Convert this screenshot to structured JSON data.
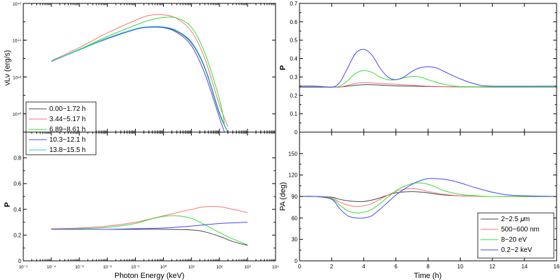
{
  "colors": {
    "black": "#444444",
    "red": "#ff6f6f",
    "green": "#33dd33",
    "blue": "#4444ff",
    "cyan": "#22cccc"
  },
  "chart_data": [
    {
      "id": "sed",
      "type": "line",
      "xscale": "log",
      "yscale": "log",
      "xlim": [
        1e-05,
        10000
      ],
      "ylim": [
        1e+39,
        1e+46
      ],
      "xlabel": "",
      "ylabel": "νLν (erg/s)",
      "xticks": [
        {
          "v": 1e-05,
          "label": "10⁻⁵"
        },
        {
          "v": 0.0001,
          "label": "10⁻⁴"
        },
        {
          "v": 0.001,
          "label": "10⁻³"
        },
        {
          "v": 0.01,
          "label": "10⁻²"
        },
        {
          "v": 0.1,
          "label": "10⁻¹"
        },
        {
          "v": 1,
          "label": "10⁰"
        },
        {
          "v": 10,
          "label": "10¹"
        },
        {
          "v": 100,
          "label": "10²"
        },
        {
          "v": 1000,
          "label": "10³"
        },
        {
          "v": 10000,
          "label": "10⁴"
        }
      ],
      "yticks": [
        {
          "v": 1e+40,
          "label": "10⁴⁰"
        },
        {
          "v": 1e+42,
          "label": "10⁴²"
        },
        {
          "v": 1e+44,
          "label": "10⁴⁴"
        },
        {
          "v": 1e+46,
          "label": "10⁴⁶"
        }
      ],
      "legend": {
        "placement": "lower-left"
      },
      "series": [
        {
          "name": "0.00~1.72 h",
          "color": "#444444",
          "x": [
            0.0001,
            0.001,
            0.01,
            0.1,
            0.3,
            1,
            3,
            10,
            30,
            100,
            200
          ],
          "y": [
            7e+42,
            3e+43,
            1.3e+44,
            4e+44,
            5.2e+44,
            5e+44,
            3e+44,
            7e+43,
            3e+42,
            1e+40,
            1e+39
          ]
        },
        {
          "name": "3.44~5.17 h",
          "color": "#ff6f6f",
          "x": [
            0.0001,
            0.001,
            0.01,
            0.1,
            0.3,
            1,
            3,
            10,
            30,
            100,
            200
          ],
          "y": [
            7.5e+42,
            4e+43,
            2.5e+44,
            1.2e+45,
            2.2e+45,
            2.4e+45,
            1.5e+45,
            3e+44,
            1e+43,
            3e+40,
            2e+39
          ]
        },
        {
          "name": "6.89~8.61 h",
          "color": "#33dd33",
          "x": [
            0.0001,
            0.001,
            0.01,
            0.1,
            0.3,
            1,
            3,
            10,
            30,
            100,
            150
          ],
          "y": [
            7e+42,
            3.2e+43,
            1.6e+44,
            6.5e+44,
            1.2e+45,
            1.7e+45,
            1.6e+45,
            5e+44,
            2e+43,
            6e+40,
            3e+39
          ]
        },
        {
          "name": "10.3~12.1 h",
          "color": "#4444ff",
          "x": [
            0.0001,
            0.001,
            0.01,
            0.1,
            0.3,
            1,
            3,
            10,
            30,
            100,
            150
          ],
          "y": [
            7e+42,
            3e+43,
            1.2e+44,
            3.8e+44,
            5e+44,
            4.8e+44,
            2.6e+44,
            5e+43,
            1.5e+42,
            6e+39,
            1e+39
          ]
        },
        {
          "name": "13.8~15.5 h",
          "color": "#22cccc",
          "x": [
            0.0001,
            0.001,
            0.01,
            0.1,
            0.3,
            1,
            3,
            10,
            30,
            100,
            200
          ],
          "y": [
            7e+42,
            3e+43,
            1.3e+44,
            4.1e+44,
            5.4e+44,
            5.3e+44,
            3.3e+44,
            8e+43,
            3.5e+42,
            1.2e+40,
            1e+39
          ]
        }
      ]
    },
    {
      "id": "pol_energy",
      "type": "line",
      "xscale": "log",
      "xlim": [
        1e-05,
        10000
      ],
      "ylim": [
        0,
        1.0
      ],
      "xlabel": "Photon Energy (keV)",
      "ylabel": "P",
      "xticks": [
        {
          "v": 1e-05,
          "label": "10⁻⁵"
        },
        {
          "v": 0.0001,
          "label": "10⁻⁴"
        },
        {
          "v": 0.001,
          "label": "10⁻³"
        },
        {
          "v": 0.01,
          "label": "10⁻²"
        },
        {
          "v": 0.1,
          "label": "10⁻¹"
        },
        {
          "v": 1,
          "label": "10⁰"
        },
        {
          "v": 10,
          "label": "10¹"
        },
        {
          "v": 100,
          "label": "10²"
        },
        {
          "v": 1000,
          "label": "10³"
        },
        {
          "v": 10000,
          "label": "10⁴"
        }
      ],
      "yticks": [
        {
          "v": 0,
          "label": "0"
        },
        {
          "v": 0.2,
          "label": "0.2"
        },
        {
          "v": 0.4,
          "label": "0.4"
        },
        {
          "v": 0.6,
          "label": "0.6"
        },
        {
          "v": 0.8,
          "label": "0.8"
        }
      ],
      "series": [
        {
          "color": "#444444",
          "x": [
            0.0001,
            0.001,
            0.01,
            0.1,
            1,
            10,
            30,
            100,
            300,
            1000
          ],
          "y": [
            0.245,
            0.245,
            0.245,
            0.245,
            0.245,
            0.24,
            0.225,
            0.19,
            0.15,
            0.12
          ]
        },
        {
          "color": "#ff6f6f",
          "x": [
            0.0001,
            0.001,
            0.01,
            0.1,
            1,
            10,
            30,
            100,
            300,
            1000
          ],
          "y": [
            0.25,
            0.255,
            0.27,
            0.3,
            0.35,
            0.4,
            0.42,
            0.42,
            0.4,
            0.375
          ]
        },
        {
          "color": "#33dd33",
          "x": [
            0.0001,
            0.001,
            0.01,
            0.1,
            0.3,
            1,
            3,
            10,
            30,
            100,
            300,
            1000
          ],
          "y": [
            0.245,
            0.25,
            0.26,
            0.29,
            0.32,
            0.345,
            0.35,
            0.33,
            0.28,
            0.22,
            0.17,
            0.125
          ]
        },
        {
          "color": "#4444ff",
          "x": [
            0.0001,
            0.001,
            0.01,
            0.1,
            1,
            10,
            30,
            100,
            300,
            1000
          ],
          "y": [
            0.245,
            0.245,
            0.245,
            0.25,
            0.255,
            0.27,
            0.28,
            0.29,
            0.295,
            0.3
          ]
        }
      ]
    },
    {
      "id": "pol_time",
      "type": "line",
      "xlim": [
        0,
        16
      ],
      "ylim": [
        0,
        0.7
      ],
      "xlabel": "",
      "ylabel": "P",
      "xticks": [
        {
          "v": 0,
          "label": "0"
        },
        {
          "v": 2,
          "label": "2"
        },
        {
          "v": 4,
          "label": "4"
        },
        {
          "v": 6,
          "label": "6"
        },
        {
          "v": 8,
          "label": "8"
        },
        {
          "v": 10,
          "label": "10"
        },
        {
          "v": 12,
          "label": "12"
        },
        {
          "v": 14,
          "label": "14"
        },
        {
          "v": 16,
          "label": "16"
        }
      ],
      "yticks": [
        {
          "v": 0,
          "label": "0"
        },
        {
          "v": 0.1,
          "label": "0.1"
        },
        {
          "v": 0.2,
          "label": "0.2"
        },
        {
          "v": 0.3,
          "label": "0.3"
        },
        {
          "v": 0.4,
          "label": "0.4"
        },
        {
          "v": 0.5,
          "label": "0.5"
        },
        {
          "v": 0.6,
          "label": "0.6"
        },
        {
          "v": 0.7,
          "label": "0.7"
        }
      ],
      "series": [
        {
          "color": "#444444",
          "x": [
            0,
            1,
            2,
            2.5,
            3,
            3.5,
            4,
            4.5,
            5,
            6,
            7,
            8,
            9,
            10,
            12,
            16
          ],
          "y": [
            0.245,
            0.245,
            0.245,
            0.245,
            0.25,
            0.255,
            0.258,
            0.258,
            0.256,
            0.252,
            0.25,
            0.248,
            0.247,
            0.246,
            0.245,
            0.245
          ]
        },
        {
          "color": "#ff6f6f",
          "x": [
            0,
            1,
            2,
            2.5,
            3,
            3.5,
            4,
            4.5,
            5,
            6,
            7,
            8,
            9,
            10,
            12,
            16
          ],
          "y": [
            0.25,
            0.25,
            0.245,
            0.245,
            0.255,
            0.265,
            0.27,
            0.268,
            0.265,
            0.26,
            0.255,
            0.25,
            0.248,
            0.247,
            0.246,
            0.246
          ]
        },
        {
          "color": "#33dd33",
          "x": [
            0,
            1,
            2,
            2.5,
            3,
            3.5,
            4,
            4.5,
            5,
            5.5,
            6,
            6.5,
            7,
            7.5,
            8,
            9,
            10,
            12,
            16
          ],
          "y": [
            0.25,
            0.25,
            0.245,
            0.25,
            0.28,
            0.32,
            0.335,
            0.325,
            0.3,
            0.285,
            0.285,
            0.295,
            0.303,
            0.3,
            0.285,
            0.26,
            0.248,
            0.246,
            0.246
          ]
        },
        {
          "color": "#4444ff",
          "x": [
            0,
            1,
            2,
            2.5,
            3,
            3.5,
            4,
            4.5,
            5,
            5.5,
            6,
            6.5,
            7,
            7.5,
            8,
            8.5,
            9,
            10,
            11,
            12,
            16
          ],
          "y": [
            0.25,
            0.25,
            0.245,
            0.27,
            0.35,
            0.43,
            0.45,
            0.42,
            0.35,
            0.3,
            0.285,
            0.3,
            0.33,
            0.35,
            0.355,
            0.35,
            0.33,
            0.29,
            0.26,
            0.25,
            0.25
          ]
        }
      ]
    },
    {
      "id": "pa_time",
      "type": "line",
      "xlim": [
        0,
        16
      ],
      "ylim": [
        0,
        180
      ],
      "xlabel": "Time (h)",
      "ylabel": "PA (deg)",
      "xticks": [
        {
          "v": 0,
          "label": "0"
        },
        {
          "v": 2,
          "label": "2"
        },
        {
          "v": 4,
          "label": "4"
        },
        {
          "v": 6,
          "label": "6"
        },
        {
          "v": 8,
          "label": "8"
        },
        {
          "v": 10,
          "label": "10"
        },
        {
          "v": 12,
          "label": "12"
        },
        {
          "v": 14,
          "label": "14"
        },
        {
          "v": 16,
          "label": "16"
        }
      ],
      "yticks": [
        {
          "v": 0,
          "label": "0"
        },
        {
          "v": 30,
          "label": "30"
        },
        {
          "v": 60,
          "label": "60"
        },
        {
          "v": 90,
          "label": "90"
        },
        {
          "v": 120,
          "label": "120"
        },
        {
          "v": 150,
          "label": "150"
        }
      ],
      "legend": {
        "placement": "lower-right"
      },
      "series": [
        {
          "name": "2~2.5 𝜇m",
          "color": "#444444",
          "x": [
            0,
            1,
            2,
            2.5,
            3,
            3.5,
            4,
            4.5,
            5,
            5.5,
            6,
            7,
            8,
            9,
            10,
            12,
            16
          ],
          "y": [
            90,
            90,
            89,
            86,
            84,
            83,
            83,
            85,
            88,
            92,
            95,
            97,
            95,
            92,
            91,
            90,
            90
          ]
        },
        {
          "name": "500~600 nm",
          "color": "#ff6f6f",
          "x": [
            0,
            1,
            2,
            2.5,
            3,
            3.5,
            4,
            4.5,
            5,
            5.5,
            6,
            6.5,
            7,
            7.5,
            8,
            9,
            10,
            12,
            16
          ],
          "y": [
            90,
            90,
            88,
            82,
            78,
            76,
            77,
            80,
            86,
            92,
            97,
            100,
            101,
            100,
            97,
            93,
            91,
            90,
            90
          ]
        },
        {
          "name": "8~20 eV",
          "color": "#33dd33",
          "x": [
            0,
            1,
            2,
            2.5,
            3,
            3.5,
            4,
            4.5,
            5,
            5.5,
            6,
            6.5,
            7,
            7.5,
            8,
            8.5,
            9,
            10,
            11,
            12,
            16
          ],
          "y": [
            90,
            90,
            87,
            78,
            70,
            67,
            68,
            72,
            80,
            89,
            98,
            104,
            108,
            109,
            107,
            103,
            98,
            93,
            91,
            90,
            90
          ]
        },
        {
          "name": "0.2~2 keV",
          "color": "#4444ff",
          "x": [
            0,
            1,
            2,
            2.5,
            3,
            3.5,
            4,
            4.5,
            5,
            5.5,
            6,
            6.5,
            7,
            7.5,
            8,
            8.5,
            9,
            9.5,
            10,
            11,
            12,
            13,
            14,
            16
          ],
          "y": [
            90,
            90,
            86,
            73,
            63,
            60,
            60,
            63,
            72,
            82,
            92,
            100,
            107,
            112,
            115,
            115,
            114,
            112,
            109,
            102,
            96,
            92,
            91,
            90
          ]
        }
      ]
    }
  ]
}
